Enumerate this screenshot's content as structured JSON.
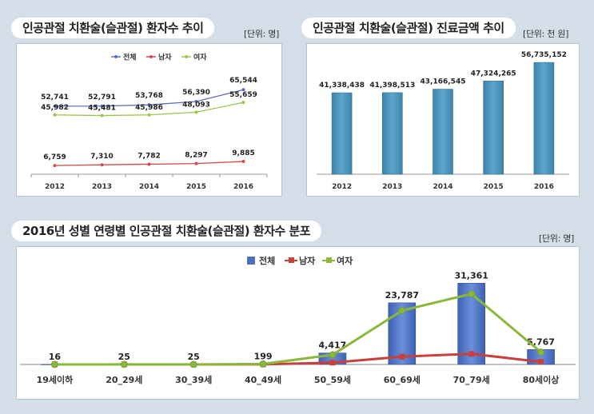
{
  "chart_data": [
    {
      "type": "line",
      "title": "인공관절 치환술(슬관절) 환자수 추이",
      "unit": "[단위: 명]",
      "categories": [
        "2012",
        "2013",
        "2014",
        "2015",
        "2016"
      ],
      "ylim": [
        0,
        70000
      ],
      "legend": "top-center",
      "series": [
        {
          "name": "전체",
          "color": "#5a6fc0",
          "values": [
            52741,
            52791,
            53768,
            56390,
            65544
          ],
          "labels": [
            "52,741",
            "52,791",
            "53,768",
            "56,390",
            "65,544"
          ]
        },
        {
          "name": "남자",
          "color": "#d44a4a",
          "values": [
            6759,
            7310,
            7782,
            8297,
            9885
          ],
          "labels": [
            "6,759",
            "7,310",
            "7,782",
            "8,297",
            "9,885"
          ]
        },
        {
          "name": "여자",
          "color": "#9ec44a",
          "values": [
            45982,
            45481,
            45986,
            48093,
            55659
          ],
          "labels": [
            "45,982",
            "45,481",
            "45,986",
            "48,093",
            "55,659"
          ]
        }
      ]
    },
    {
      "type": "bar",
      "title": "인공관절 치환술(슬관절) 진료금액 추이",
      "unit": "[단위: 천 원]",
      "categories": [
        "2012",
        "2013",
        "2014",
        "2015",
        "2016"
      ],
      "values": [
        41338438,
        41398513,
        43166545,
        47324265,
        56735152
      ],
      "labels": [
        "41,338,438",
        "41,398,513",
        "43,166,545",
        "47,324,265",
        "56,735,152"
      ],
      "ylim": [
        0,
        58000000
      ],
      "color": "#4a93b8"
    },
    {
      "type": "bar+line",
      "title": "2016년 성별 연령별 인공관절 치환술(슬관절) 환자수 분포",
      "unit": "[단위: 명]",
      "categories": [
        "19세이하",
        "20_29세",
        "30_39세",
        "40_49세",
        "50_59세",
        "60_69세",
        "70_79세",
        "80세이상"
      ],
      "ylim": [
        0,
        33000
      ],
      "legend": "top-center",
      "series": [
        {
          "name": "전체",
          "type": "bar",
          "color": "#4a70c0",
          "values": [
            16,
            25,
            25,
            199,
            4417,
            23787,
            31361,
            5767
          ],
          "labels": [
            "16",
            "25",
            "25",
            "199",
            "4,417",
            "23,787",
            "31,361",
            "5,767"
          ]
        },
        {
          "name": "남자",
          "type": "line",
          "color": "#c8403c",
          "values": [
            3,
            5,
            5,
            20,
            700,
            3000,
            4100,
            1000
          ]
        },
        {
          "name": "여자",
          "type": "line",
          "color": "#8ab83c",
          "values": [
            13,
            20,
            20,
            179,
            3717,
            20787,
            27261,
            4767
          ]
        }
      ]
    }
  ]
}
